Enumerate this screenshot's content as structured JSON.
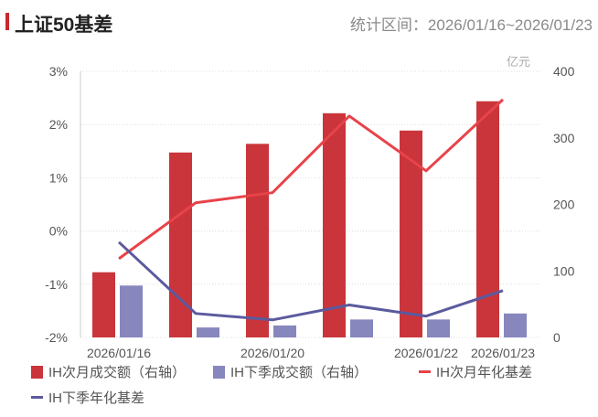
{
  "header": {
    "title": "上证50基差",
    "range": "统计区间：2026/01/16~2026/01/23"
  },
  "chart_data": {
    "type": "bar+line",
    "categories": [
      "2026/01/16",
      "",
      "2026/01/20",
      "",
      "2026/01/22",
      "2026/01/23"
    ],
    "left_axis": {
      "ticks": [
        "3%",
        "2%",
        "1%",
        "0%",
        "-1%",
        "-2%"
      ],
      "ylim": [
        -2,
        3
      ],
      "unit": "%"
    },
    "right_axis": {
      "ticks": [
        "400",
        "300",
        "200",
        "100",
        "0"
      ],
      "ylim": [
        0,
        400
      ],
      "unit": "亿元"
    },
    "series": [
      {
        "name": "IH次月成交额（右轴）",
        "type": "bar",
        "axis": "right",
        "color": "#c9353b",
        "values": [
          98,
          278,
          291,
          337,
          311,
          355
        ]
      },
      {
        "name": "IH下季成交额（右轴）",
        "type": "bar",
        "axis": "right",
        "color": "#8786bd",
        "values": [
          78,
          15,
          18,
          27,
          27,
          36
        ]
      },
      {
        "name": "IH次月年化基差",
        "type": "line",
        "axis": "left",
        "color": "#e8434a",
        "values": [
          -0.52,
          0.53,
          0.72,
          2.16,
          1.13,
          2.47
        ]
      },
      {
        "name": "IH下季年化基差",
        "type": "line",
        "axis": "left",
        "color": "#5b5a9e",
        "values": [
          -0.21,
          -1.55,
          -1.67,
          -1.39,
          -1.6,
          -1.12
        ]
      }
    ],
    "grid": true,
    "legend": "bottom"
  }
}
